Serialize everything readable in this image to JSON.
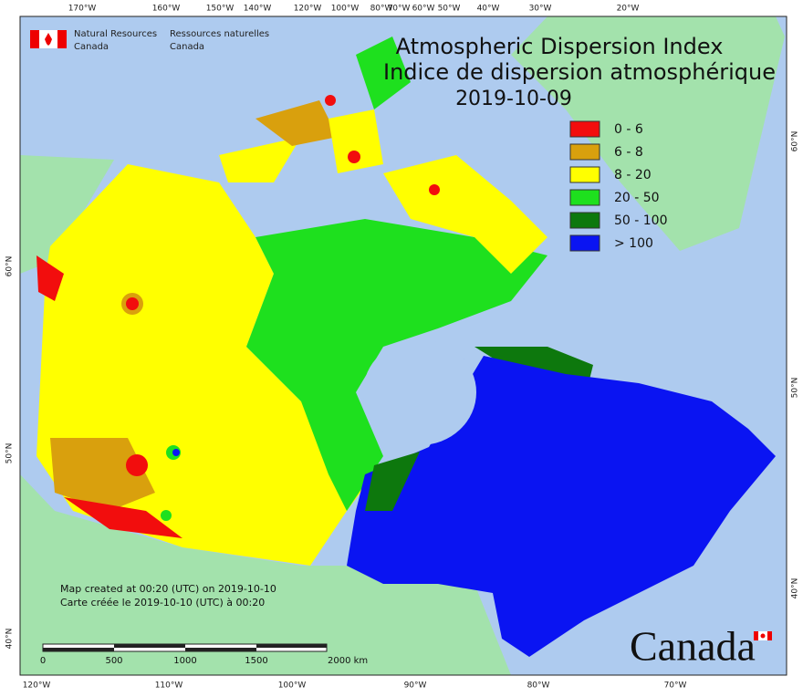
{
  "header": {
    "agency_en": [
      "Natural Resources",
      "Canada"
    ],
    "agency_fr": [
      "Ressources naturelles",
      "Canada"
    ]
  },
  "title": [
    "Atmospheric Dispersion Index",
    "Indice de dispersion atmosphérique"
  ],
  "date": "2019-10-09",
  "legend": [
    {
      "label": "0 - 6",
      "color": "#f20d0d"
    },
    {
      "label": "6 - 8",
      "color": "#d9a00d"
    },
    {
      "label": "8 - 20",
      "color": "#ffff00"
    },
    {
      "label": "20 - 50",
      "color": "#1ee01e"
    },
    {
      "label": "50 - 100",
      "color": "#0d780d"
    },
    {
      "label": "> 100",
      "color": "#0a14f2"
    }
  ],
  "graticule": {
    "top": [
      "170°W",
      "160°W",
      "150°W",
      "140°W",
      "120°W",
      "100°W",
      "80°W",
      "70°W",
      "60°W",
      "50°W",
      "40°W",
      "30°W",
      "20°W"
    ],
    "bottom": [
      "120°W",
      "110°W",
      "100°W",
      "90°W",
      "80°W",
      "70°W"
    ],
    "left": [
      "60°N",
      "50°N",
      "40°N"
    ],
    "right": [
      "60°N",
      "50°N",
      "40°N"
    ]
  },
  "notes": [
    "Map created at 00:20 (UTC) on 2019-10-10",
    "Carte créée le 2019-10-10 (UTC) à 00:20"
  ],
  "scale_labels": [
    "0",
    "500",
    "1000",
    "1500",
    "2000 km"
  ],
  "wordmark": "Canada"
}
